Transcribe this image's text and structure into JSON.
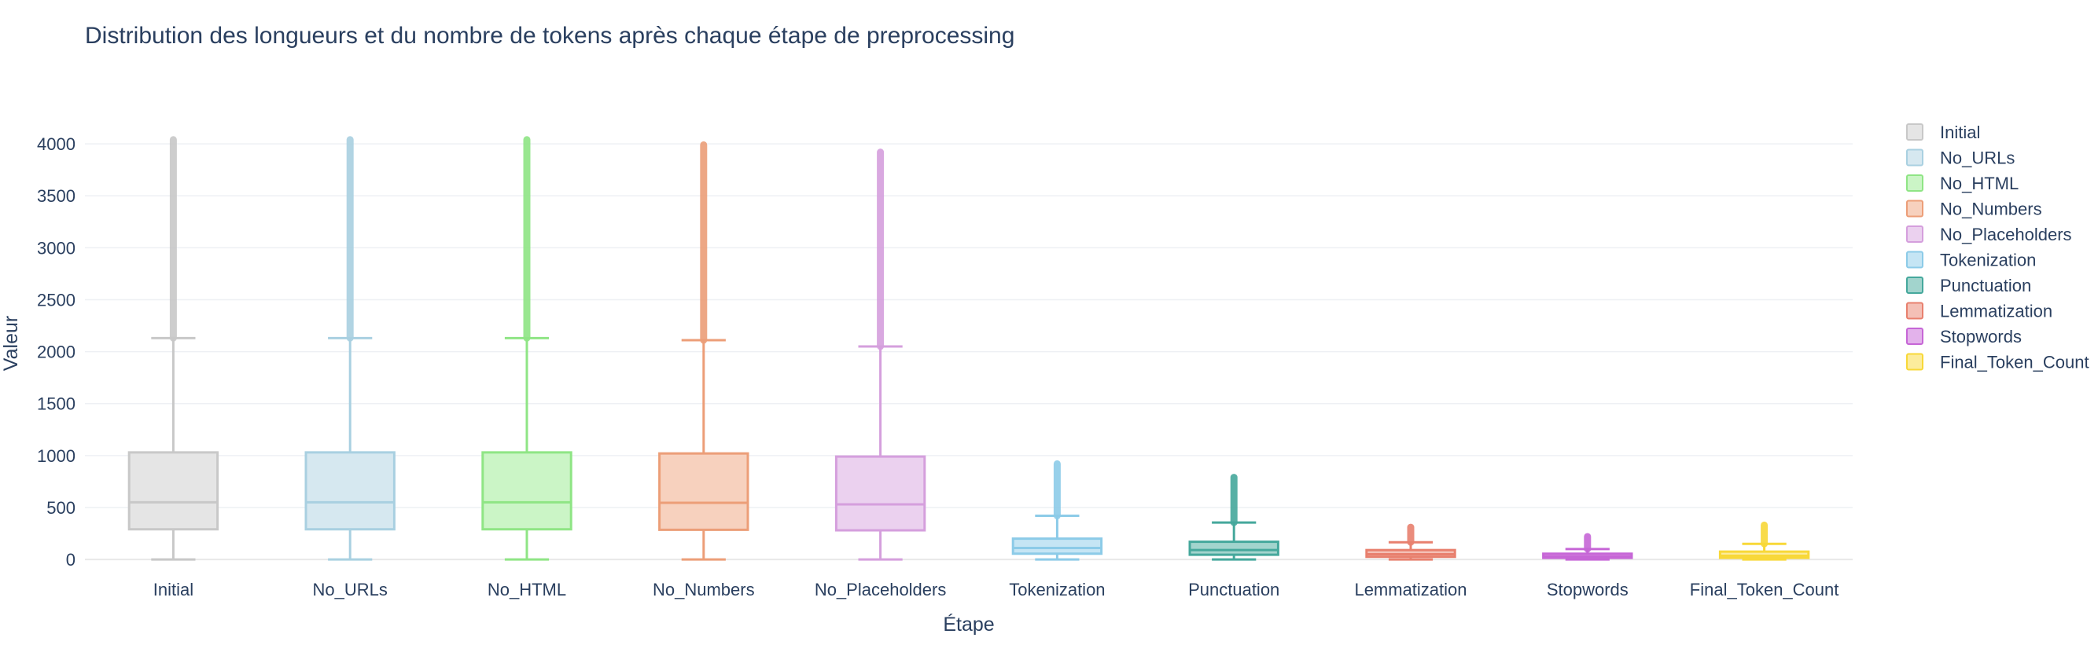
{
  "chart_data": {
    "type": "box",
    "title": "Distribution des longueurs et du nombre de tokens après chaque étape de preprocessing",
    "xlabel": "Étape",
    "ylabel": "Valeur",
    "ylim": [
      -60,
      4250
    ],
    "y_ticks": [
      0,
      500,
      1000,
      1500,
      2000,
      2500,
      3000,
      3500,
      4000
    ],
    "grid": true,
    "legend_position": "right",
    "series": [
      {
        "name": "Initial",
        "color": "#c8c8c8",
        "fill": "#e5e5e5",
        "min": 0,
        "q1": 290,
        "median": 550,
        "q3": 1030,
        "upper_fence": 2130,
        "max_outlier": 4040
      },
      {
        "name": "No_URLs",
        "color": "#a9d0e1",
        "fill": "#d6e8f0",
        "min": 0,
        "q1": 290,
        "median": 550,
        "q3": 1030,
        "upper_fence": 2130,
        "max_outlier": 4040
      },
      {
        "name": "No_HTML",
        "color": "#8fe585",
        "fill": "#cbf5c6",
        "min": 0,
        "q1": 290,
        "median": 550,
        "q3": 1030,
        "upper_fence": 2130,
        "max_outlier": 4040
      },
      {
        "name": "No_Numbers",
        "color": "#ec9e78",
        "fill": "#f7d1be",
        "min": 0,
        "q1": 285,
        "median": 545,
        "q3": 1020,
        "upper_fence": 2110,
        "max_outlier": 3990
      },
      {
        "name": "No_Placeholders",
        "color": "#d59fdd",
        "fill": "#ebd1ef",
        "min": 0,
        "q1": 280,
        "median": 530,
        "q3": 990,
        "upper_fence": 2050,
        "max_outlier": 3920
      },
      {
        "name": "Tokenization",
        "color": "#8ccbe8",
        "fill": "#c5e5f4",
        "min": 0,
        "q1": 55,
        "median": 110,
        "q3": 200,
        "upper_fence": 420,
        "max_outlier": 920
      },
      {
        "name": "Punctuation",
        "color": "#45a89c",
        "fill": "#a2d4cd",
        "min": 0,
        "q1": 45,
        "median": 90,
        "q3": 170,
        "upper_fence": 355,
        "max_outlier": 790
      },
      {
        "name": "Lemmatization",
        "color": "#e8806e",
        "fill": "#f4c0b6",
        "min": 0,
        "q1": 25,
        "median": 50,
        "q3": 90,
        "upper_fence": 165,
        "max_outlier": 310
      },
      {
        "name": "Stopwords",
        "color": "#c666d6",
        "fill": "#e3b2eb",
        "min": 0,
        "q1": 15,
        "median": 30,
        "q3": 55,
        "upper_fence": 100,
        "max_outlier": 220
      },
      {
        "name": "Final_Token_Count",
        "color": "#f8d838",
        "fill": "#fcec9c",
        "min": 0,
        "q1": 15,
        "median": 35,
        "q3": 75,
        "upper_fence": 150,
        "max_outlier": 330
      }
    ]
  }
}
